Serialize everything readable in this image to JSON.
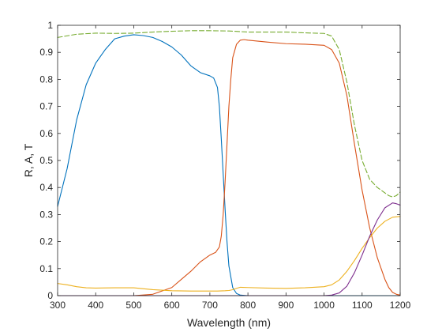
{
  "chart_data": {
    "type": "line",
    "xlabel": "Wavelength (nm)",
    "ylabel": "R, A, T",
    "xlim": [
      300,
      1200
    ],
    "ylim": [
      0,
      1
    ],
    "grid": false,
    "legend": "none",
    "xticks": [
      "300",
      "400",
      "500",
      "600",
      "700",
      "800",
      "900",
      "1000",
      "1100",
      "1200"
    ],
    "yticks": [
      "0",
      "0.1",
      "0.2",
      "0.3",
      "0.4",
      "0.5",
      "0.6",
      "0.7",
      "0.8",
      "0.9",
      "1"
    ],
    "series": [
      {
        "color": "#0072BD",
        "dash": false,
        "x": [
          300,
          325,
          350,
          375,
          400,
          425,
          450,
          475,
          500,
          525,
          550,
          575,
          600,
          625,
          650,
          675,
          700,
          710,
          720,
          725,
          730,
          735,
          740,
          745,
          750,
          760,
          770,
          780,
          800,
          1200
        ],
        "y": [
          0.33,
          0.47,
          0.65,
          0.78,
          0.86,
          0.91,
          0.95,
          0.96,
          0.965,
          0.962,
          0.955,
          0.94,
          0.92,
          0.89,
          0.85,
          0.825,
          0.813,
          0.805,
          0.77,
          0.7,
          0.58,
          0.45,
          0.32,
          0.2,
          0.11,
          0.03,
          0.008,
          0.002,
          0,
          0
        ]
      },
      {
        "color": "#D95319",
        "dash": false,
        "x": [
          300,
          500,
          550,
          600,
          625,
          650,
          675,
          700,
          715,
          725,
          730,
          735,
          740,
          745,
          750,
          755,
          760,
          770,
          780,
          790,
          800,
          850,
          900,
          950,
          1000,
          1020,
          1040,
          1060,
          1080,
          1100,
          1120,
          1140,
          1160,
          1170,
          1180,
          1190,
          1200
        ],
        "y": [
          0,
          0,
          0.005,
          0.03,
          0.06,
          0.09,
          0.125,
          0.15,
          0.16,
          0.18,
          0.22,
          0.3,
          0.42,
          0.56,
          0.7,
          0.8,
          0.88,
          0.93,
          0.945,
          0.947,
          0.945,
          0.938,
          0.932,
          0.93,
          0.926,
          0.91,
          0.86,
          0.74,
          0.56,
          0.39,
          0.25,
          0.14,
          0.06,
          0.03,
          0.012,
          0.005,
          0.002
        ]
      },
      {
        "color": "#EDB120",
        "dash": false,
        "x": [
          300,
          325,
          350,
          375,
          400,
          450,
          500,
          550,
          600,
          650,
          700,
          720,
          740,
          750,
          760,
          770,
          780,
          800,
          850,
          900,
          950,
          1000,
          1020,
          1040,
          1060,
          1080,
          1100,
          1120,
          1140,
          1160,
          1180,
          1200
        ],
        "y": [
          0.045,
          0.04,
          0.033,
          0.029,
          0.028,
          0.029,
          0.029,
          0.022,
          0.018,
          0.017,
          0.017,
          0.017,
          0.018,
          0.019,
          0.022,
          0.027,
          0.031,
          0.03,
          0.028,
          0.027,
          0.029,
          0.033,
          0.04,
          0.058,
          0.09,
          0.13,
          0.175,
          0.215,
          0.25,
          0.275,
          0.29,
          0.293
        ]
      },
      {
        "color": "#7E2F8E",
        "dash": false,
        "x": [
          300,
          1000,
          1020,
          1040,
          1060,
          1080,
          1100,
          1120,
          1140,
          1160,
          1180,
          1190,
          1200
        ],
        "y": [
          0,
          0,
          0.002,
          0.01,
          0.035,
          0.085,
          0.15,
          0.22,
          0.28,
          0.325,
          0.343,
          0.34,
          0.335
        ]
      },
      {
        "color": "#77AC30",
        "dash": true,
        "x": [
          300,
          350,
          400,
          450,
          500,
          550,
          600,
          650,
          700,
          750,
          800,
          850,
          900,
          950,
          1000,
          1020,
          1040,
          1060,
          1080,
          1100,
          1120,
          1140,
          1160,
          1170,
          1180,
          1190,
          1200
        ],
        "y": [
          0.955,
          0.967,
          0.971,
          0.97,
          0.971,
          0.975,
          0.978,
          0.98,
          0.98,
          0.979,
          0.975,
          0.975,
          0.975,
          0.972,
          0.97,
          0.96,
          0.91,
          0.79,
          0.63,
          0.5,
          0.43,
          0.4,
          0.38,
          0.37,
          0.365,
          0.37,
          0.383
        ]
      }
    ]
  }
}
